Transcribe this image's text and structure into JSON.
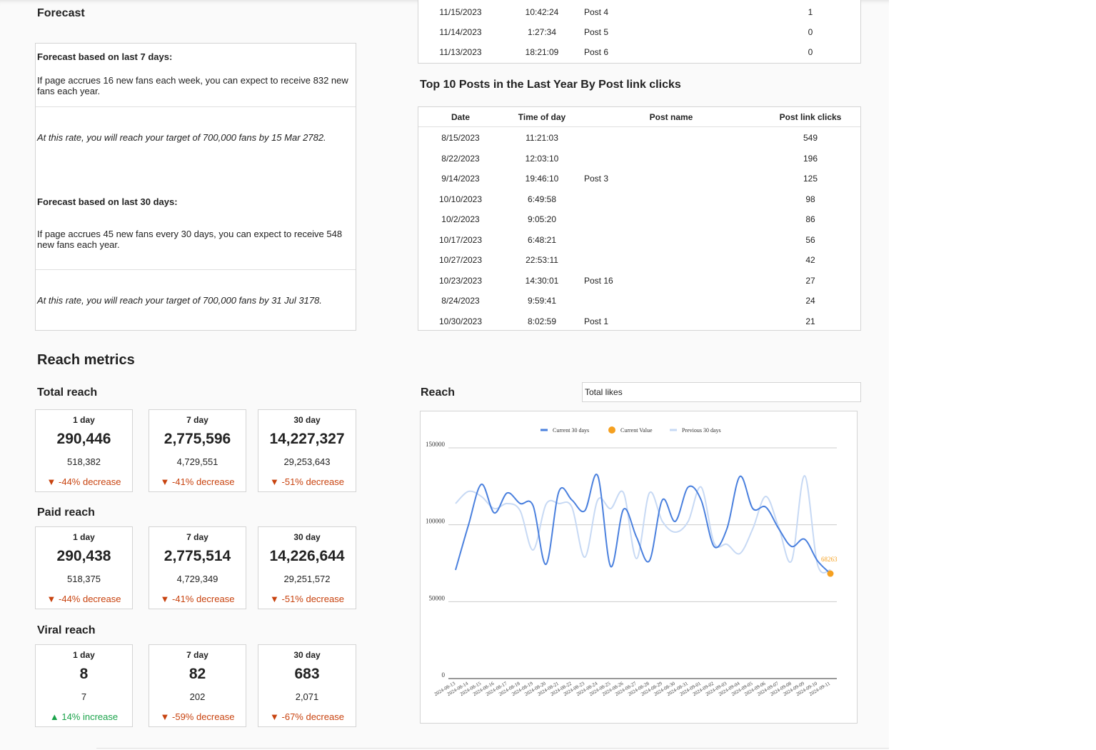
{
  "forecast": {
    "title": "Forecast",
    "sections": [
      {
        "heading": "Forecast based on last 7 days:",
        "text": "If page accrues 16 new fans each week, you can expect to receive 832 new fans each year.",
        "target": "At this rate, you will reach your target of 700,000 fans by 15 Mar 2782."
      },
      {
        "heading": "Forecast based on last 30 days:",
        "text": "If page accrues 45 new fans every 30 days, you can expect to receive 548 new fans each year.",
        "target": "At this rate, you will reach your target of 700,000 fans by 31 Jul 3178."
      }
    ]
  },
  "previous_table": {
    "rows": [
      [
        "11/15/2023",
        "10:42:24",
        "Post 4",
        1
      ],
      [
        "11/14/2023",
        "1:27:34",
        "Post 5",
        0
      ],
      [
        "11/13/2023",
        "18:21:09",
        "Post 6",
        0
      ]
    ]
  },
  "top_posts": {
    "title": "Top 10 Posts in the Last Year By Post link clicks",
    "columns": [
      "Date",
      "Time of day",
      "Post name",
      "Post link clicks"
    ],
    "rows": [
      [
        "8/15/2023",
        "11:21:03",
        null,
        549
      ],
      [
        "8/22/2023",
        "12:03:10",
        null,
        196
      ],
      [
        "9/14/2023",
        "19:46:10",
        "Post 3",
        125
      ],
      [
        "10/10/2023",
        "6:49:58",
        null,
        98
      ],
      [
        "10/2/2023",
        "9:05:20",
        null,
        86
      ],
      [
        "10/17/2023",
        "6:48:21",
        null,
        56
      ],
      [
        "10/27/2023",
        "22:53:11",
        null,
        42
      ],
      [
        "10/23/2023",
        "14:30:01",
        "Post 16",
        27
      ],
      [
        "8/24/2023",
        "9:59:41",
        null,
        24
      ],
      [
        "10/30/2023",
        "8:02:59",
        "Post 1",
        21
      ]
    ]
  },
  "reach_metrics": {
    "title": "Reach metrics",
    "groups": [
      {
        "title": "Total reach",
        "cards": [
          {
            "period": "1 day",
            "value": "290,446",
            "previous": "518,382",
            "change": "-44% decrease",
            "direction": "down"
          },
          {
            "period": "7 day",
            "value": "2,775,596",
            "previous": "4,729,551",
            "change": "-41% decrease",
            "direction": "down"
          },
          {
            "period": "30 day",
            "value": "14,227,327",
            "previous": "29,253,643",
            "change": "-51% decrease",
            "direction": "down"
          }
        ]
      },
      {
        "title": "Paid reach",
        "cards": [
          {
            "period": "1 day",
            "value": "290,438",
            "previous": "518,375",
            "change": "-44% decrease",
            "direction": "down"
          },
          {
            "period": "7 day",
            "value": "2,775,514",
            "previous": "4,729,349",
            "change": "-41% decrease",
            "direction": "down"
          },
          {
            "period": "30 day",
            "value": "14,226,644",
            "previous": "29,251,572",
            "change": "-51% decrease",
            "direction": "down"
          }
        ]
      },
      {
        "title": "Viral reach",
        "cards": [
          {
            "period": "1 day",
            "value": "8",
            "previous": "7",
            "change": "14% increase",
            "direction": "up"
          },
          {
            "period": "7 day",
            "value": "82",
            "previous": "202",
            "change": "-59% decrease",
            "direction": "down"
          },
          {
            "period": "30 day",
            "value": "683",
            "previous": "2,071",
            "change": "-67% decrease",
            "direction": "down"
          }
        ]
      }
    ]
  },
  "reach_selector": "Total likes",
  "chart_data": {
    "type": "line",
    "title": "Reach",
    "x": [
      "2024-08-13",
      "2024-08-14",
      "2024-08-15",
      "2024-08-16",
      "2024-08-17",
      "2024-08-18",
      "2024-08-19",
      "2024-08-20",
      "2024-08-21",
      "2024-08-22",
      "2024-08-23",
      "2024-08-24",
      "2024-08-25",
      "2024-08-26",
      "2024-08-27",
      "2024-08-28",
      "2024-08-29",
      "2024-08-30",
      "2024-08-31",
      "2024-09-01",
      "2024-09-02",
      "2024-09-03",
      "2024-09-04",
      "2024-09-05",
      "2024-09-06",
      "2024-09-07",
      "2024-09-08",
      "2024-09-09",
      "2024-09-10",
      "2024-09-11"
    ],
    "series": [
      {
        "name": "Current 30 days",
        "color": "#4a80de",
        "values": [
          70600,
          99800,
          126300,
          107700,
          120700,
          113800,
          112400,
          74300,
          121700,
          116100,
          109100,
          131900,
          72900,
          110100,
          92000,
          76600,
          116100,
          102200,
          124500,
          116100,
          85900,
          97500,
          131400,
          110500,
          111500,
          97500,
          85900,
          90600,
          76600,
          68263
        ]
      },
      {
        "name": "Current Value",
        "color": "#f5a020",
        "values": [
          null,
          null,
          null,
          null,
          null,
          null,
          null,
          null,
          null,
          null,
          null,
          null,
          null,
          null,
          null,
          null,
          null,
          null,
          null,
          null,
          null,
          null,
          null,
          null,
          null,
          null,
          null,
          null,
          null,
          68263
        ]
      },
      {
        "name": "Previous 30 days",
        "color": "#c7d9f4",
        "values": [
          113800,
          121700,
          118400,
          110500,
          113800,
          109100,
          83600,
          113300,
          113800,
          111500,
          78900,
          116100,
          110500,
          120700,
          78000,
          120700,
          102200,
          95200,
          102200,
          124500,
          88200,
          87300,
          81300,
          97500,
          118400,
          98400,
          76600,
          131900,
          74300,
          70600
        ]
      }
    ],
    "ylim": [
      0,
      150000
    ],
    "yticks": [
      0,
      50000,
      100000,
      150000
    ],
    "grid": true,
    "smooth": true
  }
}
